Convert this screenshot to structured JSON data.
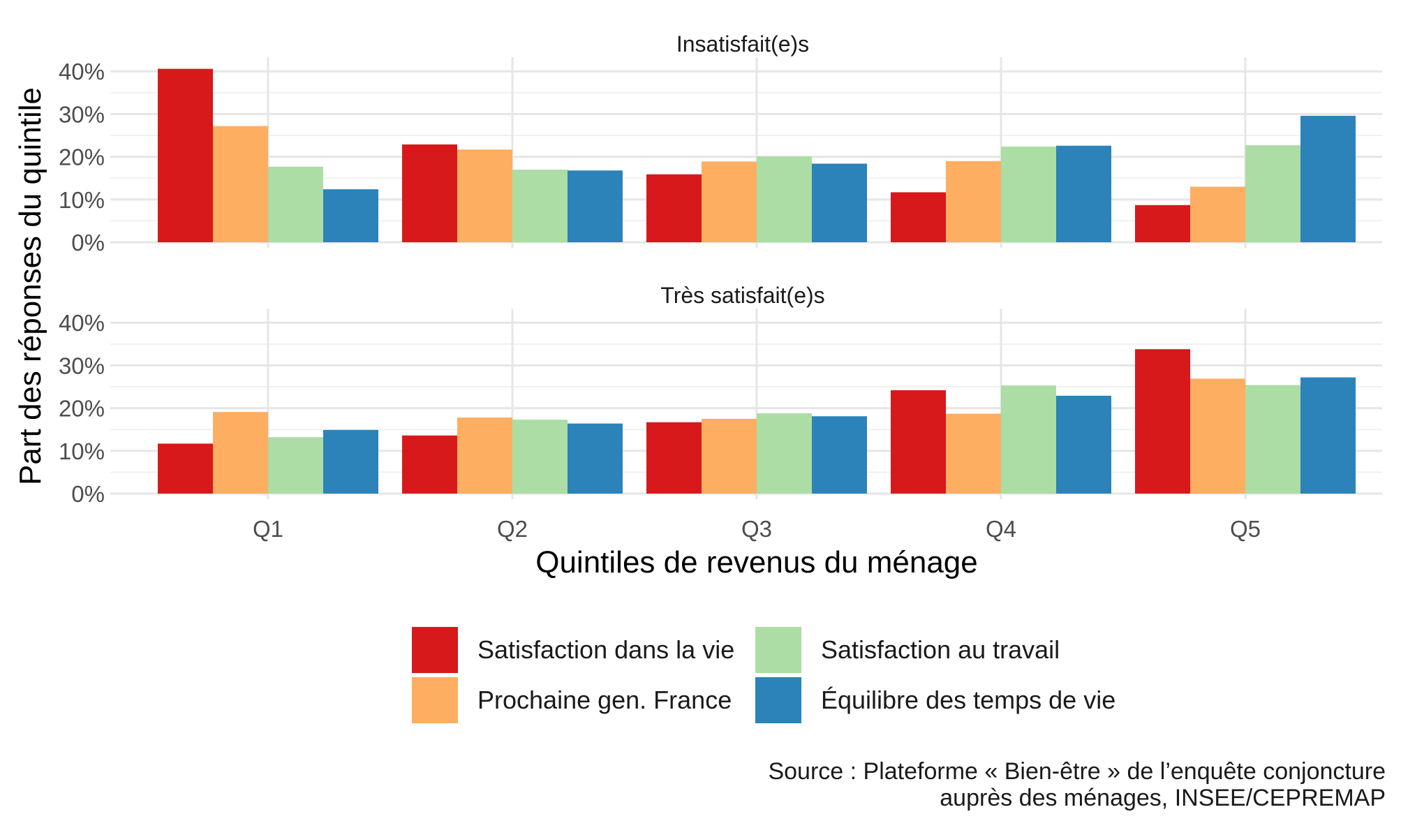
{
  "chart_data": {
    "type": "bar",
    "categories": [
      "Q1",
      "Q2",
      "Q3",
      "Q4",
      "Q5"
    ],
    "xlabel": "Quintiles de revenus du ménage",
    "ylabel": "Part des réponses du quintile",
    "ylim": [
      0,
      42
    ],
    "y_ticks": [
      "0%",
      "10%",
      "20%",
      "30%",
      "40%"
    ],
    "grid": true,
    "legend_position": "bottom",
    "series_names": [
      "Satisfaction dans la vie",
      "Prochaine gen. France",
      "Satisfaction au travail",
      "Équilibre des temps de vie"
    ],
    "colors": [
      "#d7191c",
      "#fdae61",
      "#abdda4",
      "#2b83ba"
    ],
    "panels": [
      {
        "title": "Insatisfait(e)s",
        "series": [
          {
            "name": "Satisfaction dans la vie",
            "values": [
              40.6,
              22.9,
              15.9,
              11.7,
              8.7
            ]
          },
          {
            "name": "Prochaine gen. France",
            "values": [
              27.2,
              21.7,
              18.9,
              19.0,
              13.0
            ]
          },
          {
            "name": "Satisfaction au travail",
            "values": [
              17.7,
              17.0,
              20.1,
              22.4,
              22.7
            ]
          },
          {
            "name": "Équilibre des temps de vie",
            "values": [
              12.4,
              16.8,
              18.4,
              22.6,
              29.6
            ]
          }
        ]
      },
      {
        "title": "Très satisfait(e)s",
        "series": [
          {
            "name": "Satisfaction dans la vie",
            "values": [
              11.7,
              13.6,
              16.7,
              24.2,
              33.8
            ]
          },
          {
            "name": "Prochaine gen. France",
            "values": [
              19.1,
              17.8,
              17.5,
              18.7,
              26.9
            ]
          },
          {
            "name": "Satisfaction au travail",
            "values": [
              13.2,
              17.3,
              18.8,
              25.3,
              25.4
            ]
          },
          {
            "name": "Équilibre des temps de vie",
            "values": [
              14.9,
              16.4,
              18.1,
              22.9,
              27.2
            ]
          }
        ]
      }
    ]
  },
  "source": {
    "line1": "Source : Plateforme « Bien-être » de l’enquête conjoncture",
    "line2": "auprès des ménages, INSEE/CEPREMAP"
  }
}
